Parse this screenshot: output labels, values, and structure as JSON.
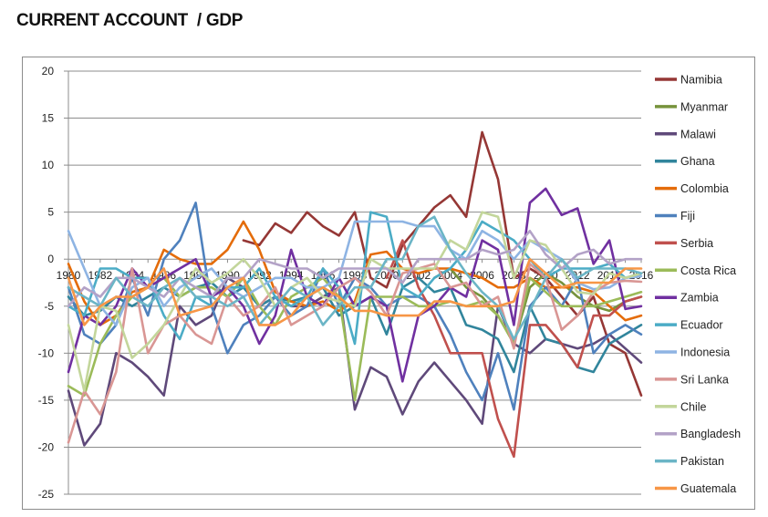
{
  "page_title": "CURRENT ACCOUNT  / GDP",
  "chart_data": {
    "type": "line",
    "title": "CURRENT ACCOUNT  / GDP",
    "xlabel": "",
    "ylabel": "",
    "ylim": [
      -25,
      20
    ],
    "yticks": [
      20,
      15,
      10,
      5,
      0,
      -5,
      -10,
      -15,
      -20,
      -25
    ],
    "xtick_labels": [
      "1980",
      "1982",
      "1984",
      "1986",
      "1988",
      "1990",
      "1992",
      "1994",
      "1996",
      "1998",
      "2000",
      "2002",
      "2004",
      "2006",
      "2008",
      "2010",
      "2012",
      "2014",
      "2016"
    ],
    "x": [
      1980,
      1981,
      1982,
      1983,
      1984,
      1985,
      1986,
      1987,
      1988,
      1989,
      1990,
      1991,
      1992,
      1993,
      1994,
      1995,
      1996,
      1997,
      1998,
      1999,
      2000,
      2001,
      2002,
      2003,
      2004,
      2005,
      2006,
      2007,
      2008,
      2009,
      2010,
      2011,
      2012,
      2013,
      2014,
      2015,
      2016
    ],
    "grid": true,
    "legend_position": "right",
    "series": [
      {
        "name": "Namibia",
        "color": "#953735",
        "values": [
          null,
          null,
          null,
          null,
          null,
          null,
          null,
          null,
          null,
          null,
          null,
          2,
          1.5,
          3.8,
          2.8,
          5,
          3.5,
          2.5,
          5,
          -2,
          -3,
          1.5,
          3.5,
          5.5,
          6.8,
          4.5,
          13.5,
          8.5,
          -2,
          -1,
          -2,
          -4,
          -6,
          -4,
          -9,
          -10,
          -14.5
        ]
      },
      {
        "name": "Myanmar",
        "color": "#77933C",
        "values": [
          null,
          null,
          null,
          null,
          null,
          null,
          null,
          null,
          null,
          null,
          null,
          null,
          null,
          null,
          null,
          null,
          null,
          null,
          null,
          null,
          null,
          null,
          null,
          -2,
          -1,
          -3,
          -4,
          -6,
          -9,
          -3,
          -1.5,
          -2.5,
          -4,
          -5,
          -5.5,
          -4.5,
          -4
        ]
      },
      {
        "name": "Malawi",
        "color": "#5F497A",
        "values": [
          -14,
          -19.8,
          -17.5,
          -10,
          -11,
          -12.5,
          -14.5,
          -5,
          -7,
          -6,
          -2,
          -3,
          -5,
          -4,
          -5,
          -5,
          -4,
          -3,
          -16,
          -11.5,
          -12.5,
          -16.5,
          -13,
          -11,
          -13,
          -15,
          -17.5,
          -5,
          -9,
          -10,
          -8.5,
          -9,
          -9.5,
          -9,
          -8,
          -9.5,
          -11
        ]
      },
      {
        "name": "Ghana",
        "color": "#31859C",
        "values": [
          -4,
          -6,
          -5.5,
          -4,
          -5,
          -4,
          -3,
          -4,
          -3,
          -2.5,
          -4,
          -3,
          -5,
          -4,
          -4.5,
          -4,
          -3,
          -6,
          -5,
          -4,
          -8,
          -3,
          -2,
          -3.5,
          -3,
          -7,
          -7.5,
          -8.5,
          -12,
          -5,
          -8.5,
          -9,
          -11.5,
          -12,
          -9,
          -8,
          -7
        ]
      },
      {
        "name": "Colombia",
        "color": "#E46C0A",
        "values": [
          -0.5,
          -4.5,
          -7,
          -6,
          -3.5,
          -3,
          1,
          0,
          -0.5,
          -0.5,
          1,
          4,
          1,
          -3.5,
          -4.5,
          -5,
          -4.5,
          -5.5,
          -4.5,
          0.5,
          0.8,
          -1,
          -1.5,
          -1,
          -1,
          -1.5,
          -2,
          -3,
          -3,
          -2,
          -3,
          -3,
          -3,
          -3.5,
          -5,
          -6.5,
          -6
        ]
      },
      {
        "name": "Fiji",
        "color": "#4F81BD",
        "values": [
          -3,
          -8,
          -9,
          -7,
          -2,
          -6,
          0,
          2,
          6,
          -5,
          -10,
          -7,
          -6,
          -4,
          -6,
          -5,
          -1,
          -5,
          -2,
          -3,
          -5,
          -4,
          -4,
          -5,
          -8,
          -12,
          -15,
          -10,
          -16,
          -5,
          -3,
          -5,
          -2,
          -10,
          -8,
          -7,
          -8
        ]
      },
      {
        "name": "Serbia",
        "color": "#C0504D",
        "values": [
          null,
          null,
          null,
          null,
          null,
          null,
          null,
          null,
          null,
          null,
          null,
          null,
          null,
          null,
          null,
          null,
          null,
          null,
          null,
          null,
          -2,
          2,
          -3,
          -6,
          -10,
          -10,
          -10,
          -17,
          -21,
          -7,
          -7,
          -9,
          -11.5,
          -6,
          -6,
          -4.5,
          -4
        ]
      },
      {
        "name": "Costa Rica",
        "color": "#9BBB59",
        "values": [
          -13.5,
          -14.5,
          -9,
          -6,
          -4,
          -3,
          -2,
          -4,
          -3,
          -3,
          -4,
          -2,
          -5,
          -7,
          -4,
          -3,
          -2,
          -4,
          -15,
          -4,
          -4,
          -4,
          -5,
          -5,
          -4.5,
          -5,
          -4.5,
          -6,
          -9,
          -2,
          -3.5,
          -5,
          -5,
          -5,
          -4.5,
          -4,
          -3.5
        ]
      },
      {
        "name": "Zambia",
        "color": "#7030A0",
        "values": [
          -12,
          -6,
          -7,
          -5,
          -1,
          -3,
          -2,
          -1,
          0,
          -4,
          -3,
          -5,
          -9,
          -6,
          1,
          -4,
          -5,
          -2,
          -5,
          -4,
          -5,
          -13,
          -6,
          -5,
          -3,
          -4,
          2,
          1,
          -7,
          6,
          7.5,
          4.7,
          5.4,
          -0.5,
          2,
          -5.3,
          -5
        ]
      },
      {
        "name": "Ecuador",
        "color": "#4BACC6",
        "values": [
          -5,
          -6,
          -1,
          -1,
          -2,
          -2,
          -6,
          -8.5,
          -4,
          -5,
          -3,
          -3,
          -1,
          -4,
          -5,
          -4,
          -1,
          -3,
          -9,
          5,
          4.5,
          -3,
          -4,
          -2,
          -1,
          1,
          4,
          3,
          2,
          0,
          -2,
          -1,
          -1,
          -1,
          -0.5,
          -2,
          -1.5
        ]
      },
      {
        "name": "Indonesia",
        "color": "#8EB4E3",
        "values": [
          3,
          -1,
          -5,
          -7,
          -3,
          -2,
          -5,
          -3,
          -2,
          -1,
          -3,
          -4,
          -3,
          -2,
          -2,
          -3,
          -3,
          -2,
          4,
          4,
          4,
          4,
          3.5,
          3.5,
          1,
          0,
          3,
          2,
          0,
          2,
          1,
          0,
          -2.5,
          -3.2,
          -3,
          -2,
          -1.8
        ]
      },
      {
        "name": "Sri Lanka",
        "color": "#D99694",
        "values": [
          -19.5,
          -14,
          -16.5,
          -12,
          -1,
          -10,
          -7,
          -6,
          -8,
          -9,
          -4,
          -6,
          -5,
          -3,
          -7,
          -6,
          -5,
          -3,
          -2,
          -3.5,
          -6,
          -1.5,
          -1,
          -0.5,
          -3,
          -2.5,
          -5,
          -4,
          -9.5,
          -0.5,
          -2,
          -7.5,
          -6,
          -3.5,
          -2.5,
          -2.3,
          -2.4
        ]
      },
      {
        "name": "Chile",
        "color": "#C3D69B",
        "values": [
          -7,
          -14,
          -5,
          -5.5,
          -10.5,
          -9,
          -7,
          -4,
          -1,
          -2.5,
          -1.5,
          0,
          -2,
          -5,
          -3,
          -2,
          -4,
          -4.5,
          -5,
          0,
          -1,
          -1,
          -1,
          -1,
          2,
          1,
          5,
          4.5,
          -2,
          2,
          1.5,
          -1,
          -3.5,
          -3.7,
          -1.5,
          -2,
          -1.5
        ]
      },
      {
        "name": "Bangladesh",
        "color": "#B3A2C7",
        "values": [
          -5,
          -3,
          -4,
          -2,
          -2,
          -3,
          -4,
          -2,
          -3,
          -4,
          -2,
          -2,
          0,
          -0.5,
          -1,
          -1,
          -2,
          -1,
          -1,
          -1,
          -1,
          -2.5,
          0,
          0,
          0,
          0,
          1,
          0.5,
          1,
          3,
          0.5,
          -1,
          0.5,
          1,
          -0.5,
          0,
          0
        ]
      },
      {
        "name": "Pakistan",
        "color": "#6BB5C6",
        "values": [
          -3,
          -4,
          -5,
          -2,
          -4,
          -5,
          -3,
          -2,
          -4,
          -4,
          -5,
          -4,
          -7,
          -5,
          -3,
          -4,
          -7,
          -5,
          -3,
          -3,
          0,
          0,
          3.5,
          4.5,
          1,
          -1.5,
          -3.5,
          -5,
          -8.5,
          -5.5,
          -2,
          0,
          -2,
          -1,
          -1,
          -1,
          -1.5
        ]
      },
      {
        "name": "Guatemala",
        "color": "#F79646",
        "values": [
          -2,
          -7,
          -5,
          -4,
          -4,
          -3,
          -1,
          -6,
          -5.5,
          -5,
          -3,
          -2,
          -7,
          -7,
          -6,
          -4,
          -3,
          -4,
          -5.5,
          -5.5,
          -6,
          -6,
          -6,
          -4.5,
          -4.5,
          -5,
          -5,
          -5,
          -4.5,
          0,
          -1.5,
          -3,
          -2.5,
          -2.5,
          -2.5,
          -1,
          -1
        ]
      }
    ]
  }
}
